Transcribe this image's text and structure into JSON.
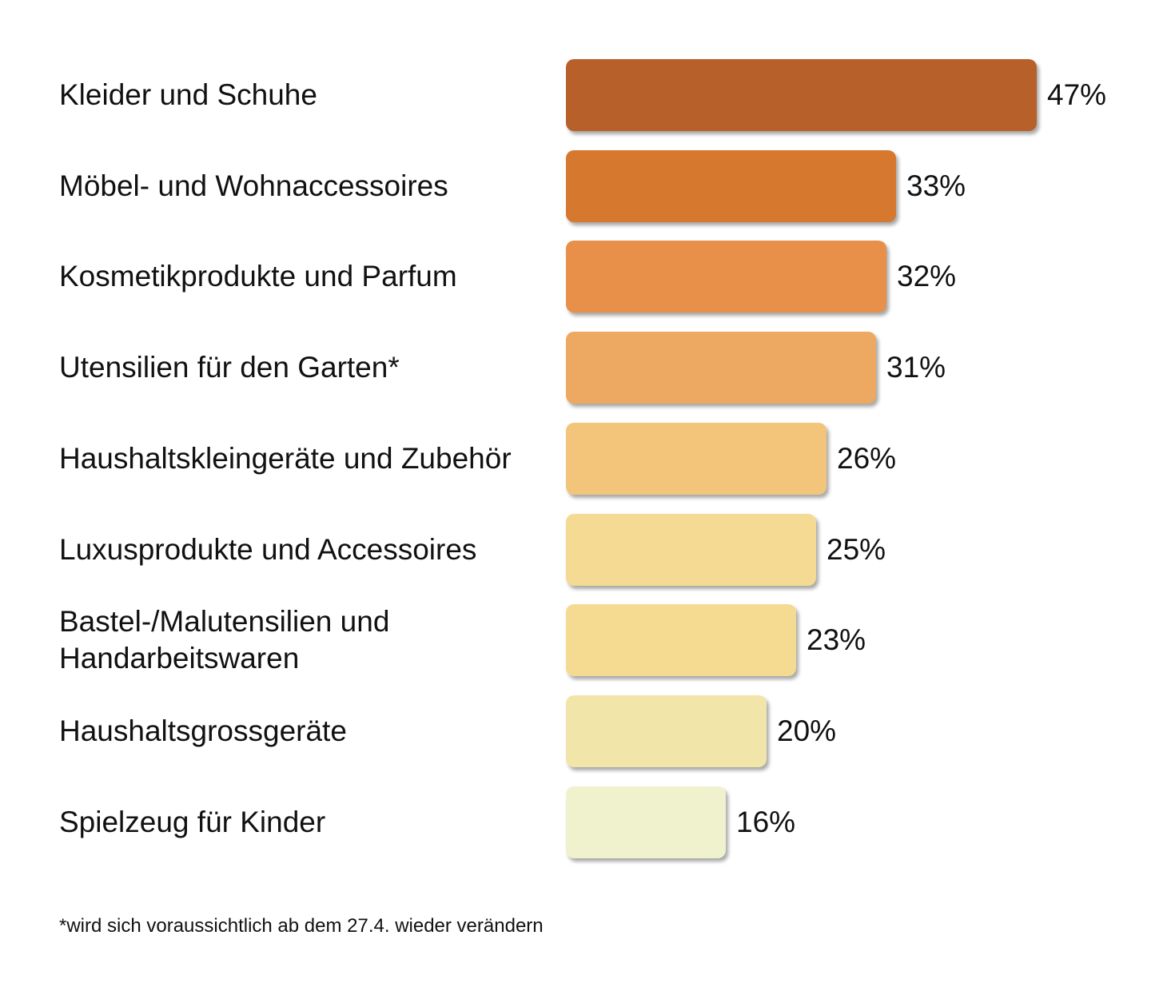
{
  "chart_data": {
    "type": "bar",
    "orientation": "horizontal",
    "categories": [
      "Kleider und Schuhe",
      "Möbel- und Wohnaccessoires",
      "Kosmetikprodukte und Parfum",
      "Utensilien für den Garten*",
      "Haushaltskleingeräte und Zubehör",
      "Luxusprodukte und Accessoires",
      "Bastel-/Malutensilien und\nHandarbeitswaren",
      "Haushaltsgrossgeräte",
      "Spielzeug für Kinder"
    ],
    "values": [
      47,
      33,
      32,
      31,
      26,
      25,
      23,
      20,
      16
    ],
    "value_labels": [
      "47%",
      "33%",
      "32%",
      "31%",
      "26%",
      "25%",
      "23%",
      "20%",
      "16%"
    ],
    "colors": [
      "#B8602A",
      "#D6782E",
      "#E8904A",
      "#EDA862",
      "#F2C57A",
      "#F4DA92",
      "#F4DB91",
      "#F2E5AA",
      "#EFF2CC"
    ],
    "title": "",
    "xlabel": "",
    "ylabel": "",
    "unit": "%",
    "legend": "none",
    "grid": false
  },
  "footnote": "*wird sich voraussichtlich ab dem 27.4. wieder verändern"
}
